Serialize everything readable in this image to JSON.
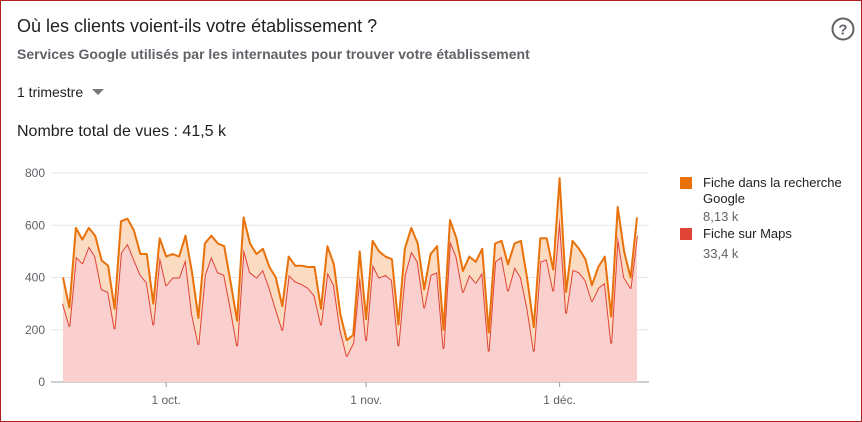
{
  "header": {
    "title": "Où les clients voient-ils votre établissement ?",
    "subtitle": "Services Google utilisés par les internautes pour trouver votre établissement",
    "period": "1 trimestre",
    "total_views": "Nombre total de vues : 41,5 k"
  },
  "chart_data": {
    "type": "stacked-area",
    "categories": [
      null,
      null,
      null,
      null,
      null,
      null,
      null,
      null,
      null,
      null,
      null,
      null,
      null,
      null,
      null,
      null,
      "1 oct.",
      null,
      null,
      null,
      null,
      null,
      null,
      null,
      null,
      null,
      null,
      null,
      null,
      null,
      null,
      null,
      null,
      null,
      null,
      null,
      null,
      null,
      null,
      null,
      null,
      null,
      null,
      null,
      null,
      null,
      null,
      "1 nov.",
      null,
      null,
      null,
      null,
      null,
      null,
      null,
      null,
      null,
      null,
      null,
      null,
      null,
      null,
      null,
      null,
      null,
      null,
      null,
      null,
      null,
      null,
      null,
      null,
      null,
      null,
      null,
      null,
      null,
      "1 déc.",
      null,
      null,
      null,
      null,
      null,
      null,
      null,
      null,
      null,
      null,
      null,
      null
    ],
    "series": [
      {
        "name": "Fiche dans la recherche Google",
        "summary": "8,13 k",
        "color": "#e8710a",
        "fill": "#fbdcc2",
        "values": [
          100,
          70,
          110,
          90,
          70,
          80,
          110,
          100,
          75,
          120,
          95,
          110,
          80,
          110,
          80,
          70,
          110,
          90,
          80,
          90,
          160,
          100,
          120,
          80,
          110,
          110,
          100,
          95,
          120,
          110,
          90,
          80,
          80,
          120,
          90,
          70,
          60,
          70,
          80,
          110,
          60,
          100,
          80,
          60,
          60,
          30,
          90,
          80,
          90,
          100,
          70,
          80,
          80,
          100,
          90,
          70,
          70,
          80,
          100,
          70,
          80,
          70,
          80,
          70,
          80,
          90,
          70,
          70,
          60,
          100,
          90,
          140,
          110,
          90,
          90,
          80,
          80,
          150,
          80,
          110,
          90,
          80,
          60,
          80,
          100,
          100,
          110,
          100,
          40,
          70
        ]
      },
      {
        "name": "Fiche sur Maps",
        "summary": "33,4 k",
        "color": "#e04436",
        "fill": "#f9d0ce",
        "values": [
          300,
          215,
          480,
          455,
          520,
          480,
          355,
          345,
          205,
          495,
          530,
          470,
          410,
          380,
          220,
          480,
          370,
          400,
          400,
          470,
          260,
          145,
          410,
          480,
          420,
          410,
          280,
          140,
          510,
          420,
          400,
          430,
          360,
          280,
          200,
          410,
          385,
          375,
          360,
          330,
          220,
          420,
          370,
          200,
          100,
          150,
          410,
          160,
          450,
          400,
          410,
          390,
          140,
          410,
          500,
          460,
          285,
          410,
          420,
          130,
          540,
          480,
          345,
          410,
          380,
          420,
          120,
          460,
          480,
          350,
          440,
          400,
          280,
          120,
          460,
          470,
          350,
          630,
          265,
          430,
          420,
          390,
          310,
          360,
          380,
          150,
          560,
          400,
          360,
          560
        ]
      }
    ],
    "ylim": [
      0,
      800
    ],
    "yticks": [
      0,
      200,
      400,
      600,
      800
    ],
    "grid": true
  }
}
